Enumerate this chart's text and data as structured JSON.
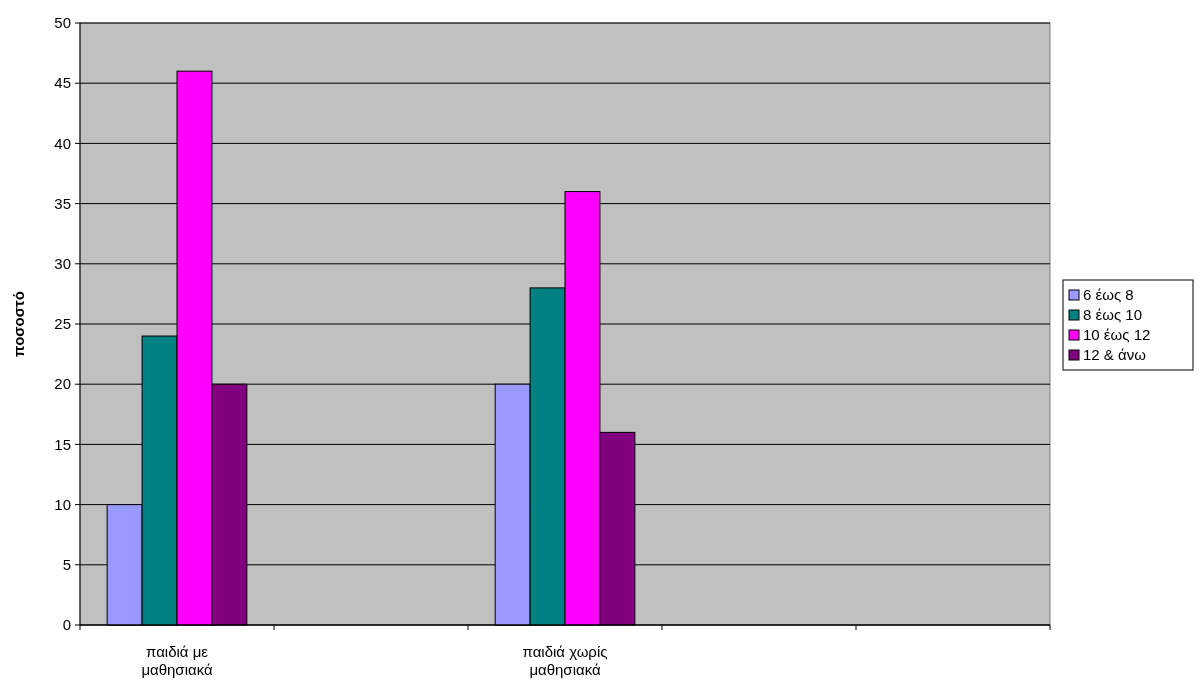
{
  "chart_data": {
    "type": "bar",
    "ylabel": "ποσοστό",
    "categories": [
      "παιδιά με μαθησιακά",
      null,
      "παιδιά χωρίς μαθησιακά",
      null,
      null
    ],
    "series": [
      {
        "name": "6 έως 8",
        "color": "#9999ff",
        "values": [
          10,
          null,
          20,
          null,
          null
        ]
      },
      {
        "name": "8 έως 10",
        "color": "#008080",
        "values": [
          24,
          null,
          28,
          null,
          null
        ]
      },
      {
        "name": "10 έως 12",
        "color": "#ff00ff",
        "values": [
          46,
          null,
          36,
          null,
          null
        ]
      },
      {
        "name": "12 & άνω",
        "color": "#800080",
        "values": [
          20,
          null,
          16,
          null,
          null
        ]
      }
    ],
    "ylim": [
      0,
      50
    ],
    "yticks": [
      0,
      5,
      10,
      15,
      20,
      25,
      30,
      35,
      40,
      45,
      50
    ],
    "grid": "y",
    "legend": "right"
  }
}
